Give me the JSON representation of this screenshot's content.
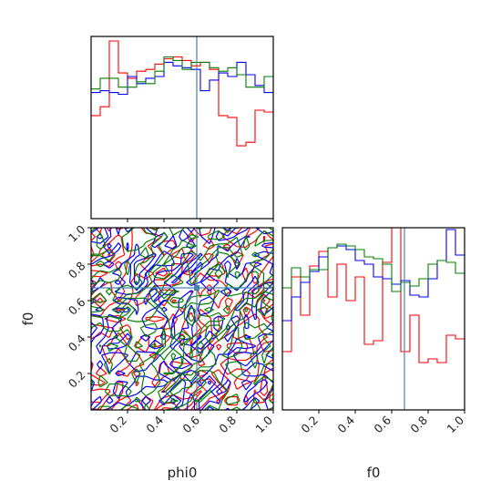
{
  "chart_data": {
    "type": "corner-plot",
    "parameters": [
      "phi0",
      "f0"
    ],
    "xlabel": "phi0",
    "ylabel": "f0",
    "f0_xlabel": "f0",
    "ranges": {
      "phi0": [
        0,
        1
      ],
      "f0": [
        0,
        1
      ]
    },
    "ticks": {
      "x": [
        "0.2",
        "0.4",
        "0.6",
        "0.8",
        "1.0"
      ],
      "y": [
        "0.2",
        "0.4",
        "0.6",
        "0.8",
        "1.0"
      ],
      "x_values": [
        0.2,
        0.4,
        0.6,
        0.8,
        1.0
      ],
      "y_values": [
        0.2,
        0.4,
        0.6,
        0.8,
        1.0
      ]
    },
    "truths": {
      "phi0": 0.58,
      "f0": 0.67
    },
    "truth_color": "#4682b4",
    "series_colors": [
      "#ff0000",
      "#0000ff",
      "#008000"
    ],
    "hist_phi0": {
      "bins": 20,
      "range": [
        0,
        1
      ],
      "series": [
        {
          "values": [
            0.58,
            0.63,
            1.0,
            0.82,
            0.79,
            0.83,
            0.84,
            0.87,
            0.9,
            0.91,
            0.89,
            0.86,
            0.88,
            0.84,
            0.58,
            0.57,
            0.41,
            0.43,
            0.61,
            0.6
          ]
        },
        {
          "values": [
            0.71,
            0.72,
            0.71,
            0.7,
            0.8,
            0.76,
            0.79,
            0.8,
            0.88,
            0.86,
            0.85,
            0.84,
            0.72,
            0.78,
            0.82,
            0.8,
            0.88,
            0.81,
            0.75,
            0.71
          ]
        },
        {
          "values": [
            0.73,
            0.79,
            0.79,
            0.74,
            0.74,
            0.77,
            0.76,
            0.83,
            0.91,
            0.89,
            0.84,
            0.88,
            0.88,
            0.85,
            0.83,
            0.85,
            0.81,
            0.74,
            0.74,
            0.8
          ]
        }
      ]
    },
    "hist_f0": {
      "bins": 20,
      "range": [
        0,
        1
      ],
      "series": [
        {
          "values": [
            0.32,
            0.73,
            0.52,
            0.79,
            0.87,
            0.62,
            0.8,
            0.6,
            0.73,
            0.36,
            0.38,
            0.81,
            1.0,
            0.32,
            0.52,
            0.26,
            0.28,
            0.26,
            0.41,
            0.39
          ]
        },
        {
          "values": [
            0.49,
            0.62,
            0.7,
            0.76,
            0.84,
            0.89,
            0.9,
            0.88,
            0.82,
            0.8,
            0.73,
            0.72,
            0.69,
            0.71,
            0.63,
            0.62,
            0.72,
            0.82,
            0.99,
            0.85
          ]
        },
        {
          "values": [
            0.67,
            0.78,
            0.73,
            0.77,
            0.77,
            0.89,
            0.91,
            0.9,
            0.88,
            0.84,
            0.83,
            0.8,
            0.65,
            0.7,
            0.68,
            0.72,
            0.8,
            0.82,
            0.81,
            0.75
          ]
        }
      ]
    }
  }
}
